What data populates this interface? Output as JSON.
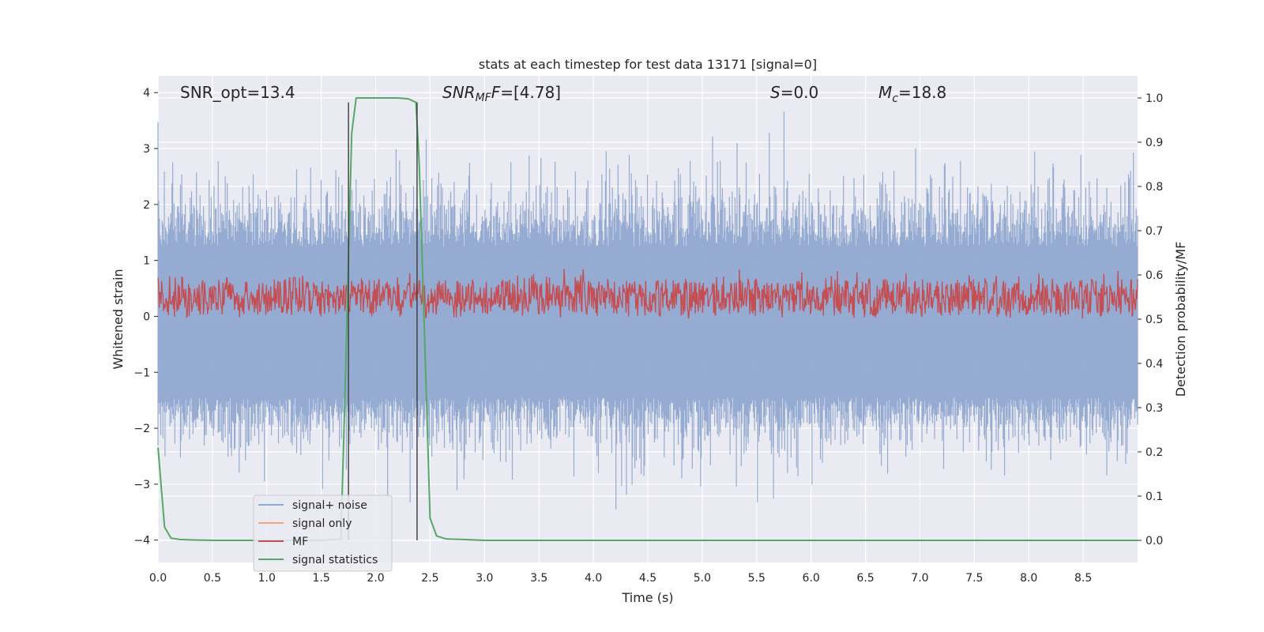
{
  "chart_data": {
    "type": "line",
    "title": "stats at each timestep for test data 13171 [signal=0]",
    "xlabel": "Time (s)",
    "ylabel_left": "Whitened strain",
    "ylabel_right": "Detection probability/MF",
    "xlim": [
      0.0,
      9.0
    ],
    "ylim_left": [
      -4.4,
      4.3
    ],
    "ylim_right": [
      -0.05,
      1.05
    ],
    "xticks": [
      "0.0",
      "0.5",
      "1.0",
      "1.5",
      "2.0",
      "2.5",
      "3.0",
      "3.5",
      "4.0",
      "4.5",
      "5.0",
      "5.5",
      "6.0",
      "6.5",
      "7.0",
      "7.5",
      "8.0",
      "8.5"
    ],
    "yticks_left": [
      "4",
      "3",
      "2",
      "1",
      "0",
      "−1",
      "−2",
      "−3",
      "−4"
    ],
    "yticks_right": [
      "1.0",
      "0.9",
      "0.8",
      "0.7",
      "0.6",
      "0.5",
      "0.4",
      "0.3",
      "0.2",
      "0.1",
      "0.0"
    ],
    "grid": true,
    "legend_position": "lower-left",
    "annotations": {
      "snr_opt": "SNR_opt=13.4",
      "snr_mf_main": "SNR",
      "snr_mf_sub": "MF",
      "snr_mf_rest": "=[4.78]",
      "s_main": "S",
      "s_rest": "=0.0",
      "mc_main": "M",
      "mc_sub": "c",
      "mc_rest": "=18.8"
    },
    "vertical_lines_x": [
      1.75,
      2.38
    ],
    "series": [
      {
        "name": "signal+ noise",
        "color": "#91a8d0",
        "axis": "left",
        "envelope_upper_approx": 2.0,
        "envelope_lower_approx": -2.0
      },
      {
        "name": "signal only",
        "color": "#f0a57a",
        "axis": "left",
        "values": []
      },
      {
        "name": "MF",
        "color": "#c44e52",
        "axis": "right",
        "range_approx": [
          0.5,
          0.6
        ]
      },
      {
        "name": "signal statistics",
        "color": "#55a868",
        "axis": "right",
        "x": [
          0.0,
          0.06,
          0.12,
          0.2,
          0.3,
          0.5,
          1.0,
          1.5,
          1.68,
          1.72,
          1.78,
          1.82,
          2.0,
          2.2,
          2.3,
          2.37,
          2.4,
          2.45,
          2.5,
          2.56,
          2.65,
          2.8,
          3.0,
          4.0,
          6.0,
          9.0
        ],
        "values": [
          0.21,
          0.03,
          0.005,
          0.002,
          0.001,
          0.0,
          0.0,
          0.0,
          0.003,
          0.35,
          0.92,
          1.0,
          1.0,
          1.0,
          0.998,
          0.99,
          0.85,
          0.45,
          0.05,
          0.01,
          0.003,
          0.002,
          0.0,
          0.0,
          0.0,
          0.0
        ]
      }
    ]
  },
  "colors": {
    "plot_background": "#eaeaf2",
    "grid": "#ffffff",
    "noise": "#91a8d0",
    "signal_only": "#f0a57a",
    "mf": "#c44e52",
    "stat": "#55a868",
    "vline": "#3a3a3a"
  }
}
